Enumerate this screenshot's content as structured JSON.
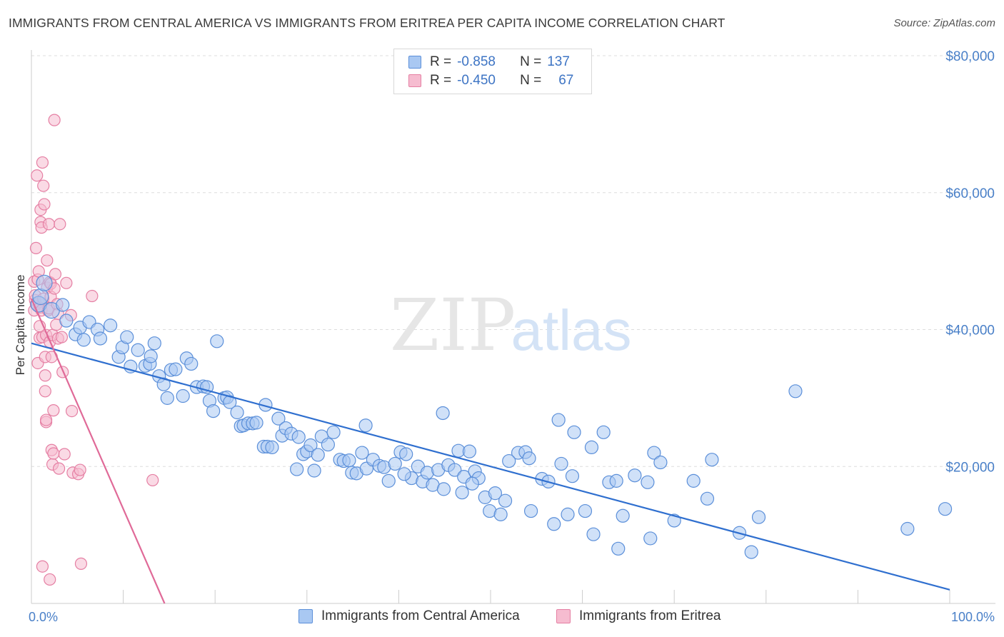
{
  "title": "IMMIGRANTS FROM CENTRAL AMERICA VS IMMIGRANTS FROM ERITREA PER CAPITA INCOME CORRELATION CHART",
  "source": "Source: ZipAtlas.com",
  "watermark": {
    "zip": "ZIP",
    "atlas": "atlas"
  },
  "legend": {
    "rows": [
      {
        "r_label": "R =",
        "r_value": "-0.858",
        "n_label": "N =",
        "n_value": "137"
      },
      {
        "r_label": "R =",
        "r_value": "-0.450",
        "n_label": "N =",
        "n_value": "67"
      }
    ]
  },
  "bottom_legend": [
    "Immigrants from Central America",
    "Immigrants from Eritrea"
  ],
  "colors": {
    "blue_fill": "#a9c8f2",
    "blue_stroke": "#5b8fd9",
    "blue_line": "#2f6fcf",
    "pink_fill": "#f6bcd0",
    "pink_stroke": "#e57fa3",
    "pink_line": "#e06a98",
    "grid": "#dddddd",
    "axis_text": "#4a80c8"
  },
  "chart_data": {
    "type": "scatter",
    "title": "IMMIGRANTS FROM CENTRAL AMERICA VS IMMIGRANTS FROM ERITREA PER CAPITA INCOME CORRELATION CHART",
    "xlabel": "",
    "ylabel": "Per Capita Income",
    "xlim": [
      0,
      100
    ],
    "ylim": [
      0,
      80000
    ],
    "x_tick_labels": [
      "0.0%",
      "100.0%"
    ],
    "y_ticks": [
      20000,
      40000,
      60000,
      80000
    ],
    "y_tick_labels": [
      "$20,000",
      "$40,000",
      "$60,000",
      "$80,000"
    ],
    "grid": true,
    "legend_position": "top-center",
    "series": [
      {
        "name": "Immigrants from Central America",
        "r": -0.858,
        "n": 137,
        "trend": {
          "x": [
            0,
            100
          ],
          "y": [
            38000,
            2000
          ]
        },
        "points": [
          [
            0.8,
            43700
          ],
          [
            1.0,
            44800
          ],
          [
            1.4,
            46800
          ],
          [
            2.2,
            42800
          ],
          [
            3.4,
            43600
          ],
          [
            3.8,
            41300
          ],
          [
            4.8,
            39300
          ],
          [
            5.3,
            40300
          ],
          [
            6.3,
            41100
          ],
          [
            5.7,
            38500
          ],
          [
            7.2,
            40000
          ],
          [
            7.5,
            38700
          ],
          [
            8.6,
            40600
          ],
          [
            9.5,
            36000
          ],
          [
            9.9,
            37400
          ],
          [
            10.4,
            38900
          ],
          [
            10.8,
            34600
          ],
          [
            11.6,
            37000
          ],
          [
            12.4,
            34700
          ],
          [
            12.9,
            35000
          ],
          [
            13.0,
            36100
          ],
          [
            13.4,
            38000
          ],
          [
            13.9,
            33200
          ],
          [
            14.4,
            32000
          ],
          [
            14.8,
            30000
          ],
          [
            15.2,
            34100
          ],
          [
            15.7,
            34200
          ],
          [
            16.5,
            30300
          ],
          [
            16.9,
            35800
          ],
          [
            17.4,
            35000
          ],
          [
            18.0,
            31600
          ],
          [
            18.7,
            31700
          ],
          [
            19.1,
            31600
          ],
          [
            19.4,
            29600
          ],
          [
            19.8,
            28100
          ],
          [
            20.2,
            38300
          ],
          [
            21.0,
            30000
          ],
          [
            21.3,
            30100
          ],
          [
            21.6,
            29400
          ],
          [
            22.4,
            27900
          ],
          [
            22.8,
            25900
          ],
          [
            23.1,
            26000
          ],
          [
            23.6,
            26300
          ],
          [
            24.1,
            26300
          ],
          [
            24.5,
            26400
          ],
          [
            25.3,
            22900
          ],
          [
            25.7,
            22900
          ],
          [
            26.2,
            22800
          ],
          [
            26.9,
            27000
          ],
          [
            27.3,
            24500
          ],
          [
            27.7,
            25600
          ],
          [
            28.3,
            24800
          ],
          [
            29.1,
            24300
          ],
          [
            29.6,
            21800
          ],
          [
            30.0,
            22200
          ],
          [
            30.4,
            23100
          ],
          [
            30.8,
            19400
          ],
          [
            31.6,
            24400
          ],
          [
            32.3,
            23200
          ],
          [
            32.9,
            25000
          ],
          [
            33.6,
            21000
          ],
          [
            34.0,
            20800
          ],
          [
            34.9,
            19100
          ],
          [
            35.4,
            19000
          ],
          [
            36.0,
            22000
          ],
          [
            36.5,
            19700
          ],
          [
            37.2,
            21000
          ],
          [
            37.9,
            20100
          ],
          [
            38.4,
            19900
          ],
          [
            38.9,
            17900
          ],
          [
            39.6,
            20400
          ],
          [
            40.2,
            22100
          ],
          [
            40.8,
            21800
          ],
          [
            41.4,
            18300
          ],
          [
            42.1,
            20000
          ],
          [
            42.6,
            17800
          ],
          [
            43.1,
            19100
          ],
          [
            43.7,
            17300
          ],
          [
            44.3,
            19500
          ],
          [
            44.9,
            16700
          ],
          [
            45.4,
            20200
          ],
          [
            46.1,
            19500
          ],
          [
            46.5,
            22300
          ],
          [
            47.1,
            18500
          ],
          [
            47.7,
            22200
          ],
          [
            48.3,
            19300
          ],
          [
            48.7,
            18300
          ],
          [
            49.4,
            15500
          ],
          [
            49.9,
            13500
          ],
          [
            50.5,
            16100
          ],
          [
            51.1,
            13000
          ],
          [
            51.6,
            15000
          ],
          [
            53.0,
            22000
          ],
          [
            53.8,
            22100
          ],
          [
            54.2,
            21200
          ],
          [
            54.4,
            13500
          ],
          [
            55.6,
            18200
          ],
          [
            56.3,
            17800
          ],
          [
            56.9,
            11600
          ],
          [
            57.4,
            26800
          ],
          [
            58.4,
            13000
          ],
          [
            58.9,
            18600
          ],
          [
            59.1,
            25000
          ],
          [
            60.3,
            13500
          ],
          [
            61.2,
            10100
          ],
          [
            62.3,
            25000
          ],
          [
            62.9,
            17700
          ],
          [
            63.7,
            17900
          ],
          [
            63.9,
            8000
          ],
          [
            64.4,
            12800
          ],
          [
            65.7,
            18700
          ],
          [
            67.1,
            17700
          ],
          [
            67.4,
            9500
          ],
          [
            67.8,
            22000
          ],
          [
            70.0,
            12100
          ],
          [
            72.1,
            17900
          ],
          [
            73.6,
            15300
          ],
          [
            74.1,
            21000
          ],
          [
            77.1,
            10300
          ],
          [
            78.4,
            7500
          ],
          [
            79.2,
            12600
          ],
          [
            83.2,
            31000
          ],
          [
            95.4,
            10900
          ],
          [
            99.5,
            13800
          ],
          [
            25.5,
            29000
          ],
          [
            44.8,
            27800
          ],
          [
            31.2,
            21700
          ],
          [
            61.0,
            22800
          ],
          [
            48.0,
            17500
          ],
          [
            36.4,
            26000
          ],
          [
            52.0,
            20800
          ],
          [
            57.7,
            20400
          ],
          [
            34.6,
            20900
          ],
          [
            46.9,
            16200
          ],
          [
            40.6,
            18900
          ],
          [
            28.9,
            19600
          ],
          [
            68.5,
            20600
          ]
        ]
      },
      {
        "name": "Immigrants from Eritrea",
        "r": -0.45,
        "n": 67,
        "trend": {
          "x": [
            0,
            14.5
          ],
          "y": [
            44500,
            0
          ]
        },
        "points": [
          [
            0.3,
            42800
          ],
          [
            0.3,
            47000
          ],
          [
            0.4,
            44300
          ],
          [
            0.4,
            45000
          ],
          [
            0.5,
            43700
          ],
          [
            0.5,
            51900
          ],
          [
            0.6,
            62500
          ],
          [
            0.7,
            35100
          ],
          [
            0.7,
            47300
          ],
          [
            0.8,
            48500
          ],
          [
            0.8,
            44000
          ],
          [
            0.9,
            38800
          ],
          [
            0.9,
            43200
          ],
          [
            1.0,
            55700
          ],
          [
            1.0,
            57500
          ],
          [
            1.1,
            54900
          ],
          [
            1.1,
            42800
          ],
          [
            1.2,
            64400
          ],
          [
            1.2,
            38900
          ],
          [
            1.3,
            44500
          ],
          [
            1.3,
            61000
          ],
          [
            1.4,
            58300
          ],
          [
            1.5,
            36000
          ],
          [
            1.5,
            31000
          ],
          [
            1.5,
            33300
          ],
          [
            1.6,
            39200
          ],
          [
            1.6,
            26500
          ],
          [
            1.7,
            50100
          ],
          [
            1.7,
            46100
          ],
          [
            1.8,
            42800
          ],
          [
            1.9,
            55400
          ],
          [
            1.9,
            43100
          ],
          [
            2.0,
            46900
          ],
          [
            2.0,
            38200
          ],
          [
            2.1,
            46700
          ],
          [
            2.1,
            44800
          ],
          [
            2.2,
            22400
          ],
          [
            2.2,
            36000
          ],
          [
            2.3,
            39200
          ],
          [
            2.3,
            20300
          ],
          [
            2.4,
            28200
          ],
          [
            2.4,
            21900
          ],
          [
            2.5,
            46000
          ],
          [
            2.5,
            70600
          ],
          [
            2.6,
            48100
          ],
          [
            2.7,
            40700
          ],
          [
            2.8,
            43700
          ],
          [
            2.9,
            38700
          ],
          [
            3.0,
            19700
          ],
          [
            3.1,
            55400
          ],
          [
            3.3,
            38900
          ],
          [
            3.6,
            21800
          ],
          [
            3.8,
            46800
          ],
          [
            4.3,
            42100
          ],
          [
            4.4,
            28100
          ],
          [
            4.5,
            19100
          ],
          [
            5.1,
            18900
          ],
          [
            5.3,
            19500
          ],
          [
            5.4,
            5800
          ],
          [
            6.6,
            44900
          ],
          [
            1.2,
            5400
          ],
          [
            2.0,
            3500
          ],
          [
            13.2,
            18000
          ],
          [
            1.6,
            26800
          ],
          [
            2.9,
            42300
          ],
          [
            0.9,
            40500
          ],
          [
            3.4,
            33800
          ]
        ]
      }
    ]
  }
}
